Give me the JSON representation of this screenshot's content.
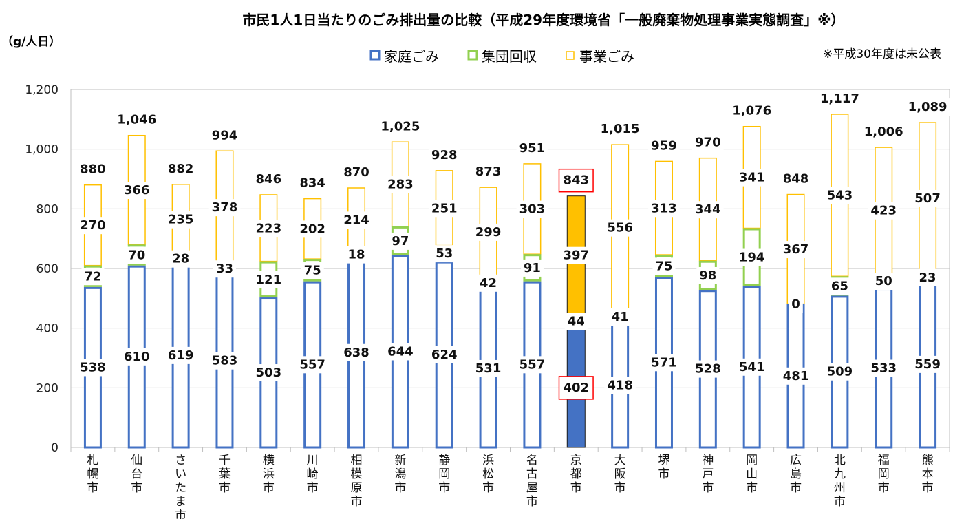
{
  "title": "市民1人1日当たりのごみ排出量の比較（平成29年度環境省「一般廃棄物処理事業実態調査」※）",
  "unit_label": "（g/人日）",
  "note": "※平成30年度は未公表",
  "colors": {
    "household": "#4472C4",
    "group": "#92D050",
    "business": "#FFC000",
    "grid": "#BFBFBF",
    "highlight_border": "#FF0000"
  },
  "chart_data": {
    "type": "bar",
    "stacked": true,
    "categories": [
      "札幌市",
      "仙台市",
      "さいたま市",
      "千葉市",
      "横浜市",
      "川崎市",
      "相模原市",
      "新潟市",
      "静岡市",
      "浜松市",
      "名古屋市",
      "京都市",
      "大阪市",
      "堺市",
      "神戸市",
      "岡山市",
      "広島市",
      "北九州市",
      "福岡市",
      "熊本市"
    ],
    "series": [
      {
        "name": "家庭ごみ",
        "key": "household",
        "values": [
          538,
          610,
          619,
          583,
          503,
          557,
          638,
          644,
          624,
          531,
          557,
          402,
          418,
          571,
          528,
          541,
          481,
          509,
          533,
          559
        ]
      },
      {
        "name": "集団回収",
        "key": "group",
        "values": [
          72,
          70,
          28,
          33,
          121,
          75,
          18,
          97,
          53,
          42,
          91,
          44,
          41,
          75,
          98,
          194,
          0,
          65,
          50,
          23
        ]
      },
      {
        "name": "事業ごみ",
        "key": "business",
        "values": [
          270,
          366,
          235,
          378,
          223,
          202,
          214,
          283,
          251,
          299,
          303,
          397,
          556,
          313,
          344,
          341,
          367,
          543,
          423,
          507
        ]
      }
    ],
    "totals": [
      880,
      1046,
      882,
      994,
      846,
      834,
      870,
      1025,
      928,
      873,
      951,
      843,
      1015,
      959,
      970,
      1076,
      848,
      1117,
      1006,
      1089
    ],
    "ylim": [
      0,
      1200
    ],
    "yticks": [
      0,
      200,
      400,
      600,
      800,
      1000,
      1200
    ],
    "ytick_labels": [
      "0",
      "200",
      "400",
      "600",
      "800",
      "1,000",
      "1,200"
    ],
    "total_labels": [
      "880",
      "1,046",
      "882",
      "994",
      "846",
      "834",
      "870",
      "1,025",
      "928",
      "873",
      "951",
      "843",
      "1,015",
      "959",
      "970",
      "1,076",
      "848",
      "1,117",
      "1,006",
      "1,089"
    ],
    "highlight_category": "京都市",
    "legend_position": "top",
    "grid": true
  }
}
